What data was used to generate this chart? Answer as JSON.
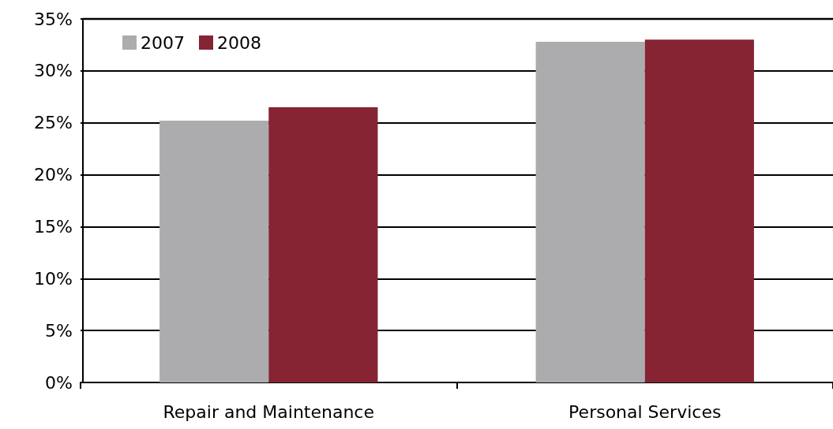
{
  "chart_data": {
    "type": "bar",
    "categories": [
      "Repair and Maintenance",
      "Personal Services"
    ],
    "series": [
      {
        "name": "2007",
        "color": "#acacae",
        "values": [
          25.2,
          32.8
        ]
      },
      {
        "name": "2008",
        "color": "#862433",
        "values": [
          26.5,
          33.0
        ]
      }
    ],
    "ylim": [
      0,
      35
    ],
    "yticks": [
      {
        "value": 0,
        "label": "0%"
      },
      {
        "value": 5,
        "label": "5%"
      },
      {
        "value": 10,
        "label": "10%"
      },
      {
        "value": 15,
        "label": "15%"
      },
      {
        "value": 20,
        "label": "20%"
      },
      {
        "value": 25,
        "label": "25%"
      },
      {
        "value": 30,
        "label": "30%"
      },
      {
        "value": 35,
        "label": "35%"
      }
    ],
    "grid": "y",
    "legend": "top left"
  }
}
